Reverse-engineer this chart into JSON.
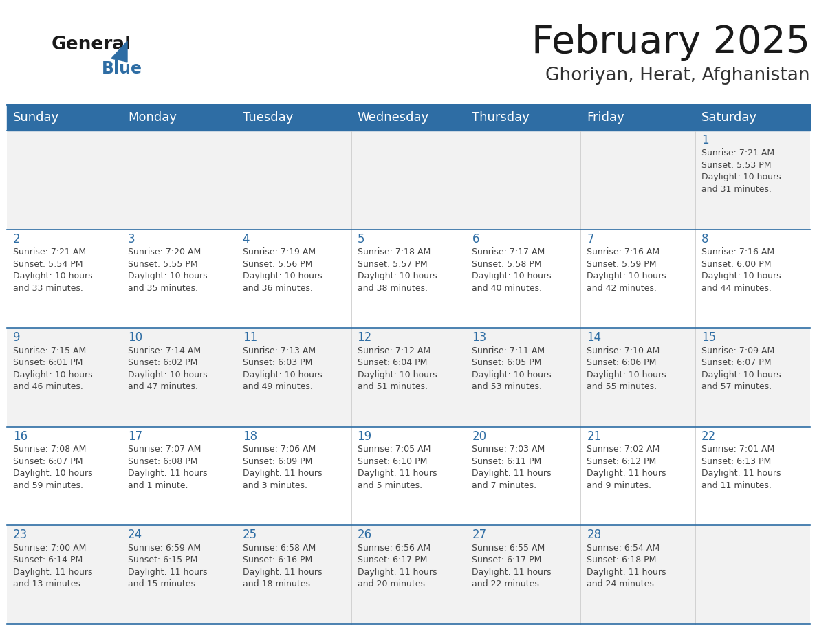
{
  "title": "February 2025",
  "subtitle": "Ghoriyan, Herat, Afghanistan",
  "days_of_week": [
    "Sunday",
    "Monday",
    "Tuesday",
    "Wednesday",
    "Thursday",
    "Friday",
    "Saturday"
  ],
  "header_bg": "#2E6DA4",
  "header_text": "#FFFFFF",
  "cell_bg_odd": "#F2F2F2",
  "cell_bg_even": "#FFFFFF",
  "border_color": "#2E6DA4",
  "day_number_color": "#2E6DA4",
  "text_color": "#444444",
  "logo_text_color": "#1a1a1a",
  "logo_blue_color": "#2E6DA4",
  "title_color": "#1a1a1a",
  "subtitle_color": "#333333",
  "calendar_data": [
    [
      null,
      null,
      null,
      null,
      null,
      null,
      {
        "day": 1,
        "sunrise": "7:21 AM",
        "sunset": "5:53 PM",
        "daylight_line1": "Daylight: 10 hours",
        "daylight_line2": "and 31 minutes."
      }
    ],
    [
      {
        "day": 2,
        "sunrise": "7:21 AM",
        "sunset": "5:54 PM",
        "daylight_line1": "Daylight: 10 hours",
        "daylight_line2": "and 33 minutes."
      },
      {
        "day": 3,
        "sunrise": "7:20 AM",
        "sunset": "5:55 PM",
        "daylight_line1": "Daylight: 10 hours",
        "daylight_line2": "and 35 minutes."
      },
      {
        "day": 4,
        "sunrise": "7:19 AM",
        "sunset": "5:56 PM",
        "daylight_line1": "Daylight: 10 hours",
        "daylight_line2": "and 36 minutes."
      },
      {
        "day": 5,
        "sunrise": "7:18 AM",
        "sunset": "5:57 PM",
        "daylight_line1": "Daylight: 10 hours",
        "daylight_line2": "and 38 minutes."
      },
      {
        "day": 6,
        "sunrise": "7:17 AM",
        "sunset": "5:58 PM",
        "daylight_line1": "Daylight: 10 hours",
        "daylight_line2": "and 40 minutes."
      },
      {
        "day": 7,
        "sunrise": "7:16 AM",
        "sunset": "5:59 PM",
        "daylight_line1": "Daylight: 10 hours",
        "daylight_line2": "and 42 minutes."
      },
      {
        "day": 8,
        "sunrise": "7:16 AM",
        "sunset": "6:00 PM",
        "daylight_line1": "Daylight: 10 hours",
        "daylight_line2": "and 44 minutes."
      }
    ],
    [
      {
        "day": 9,
        "sunrise": "7:15 AM",
        "sunset": "6:01 PM",
        "daylight_line1": "Daylight: 10 hours",
        "daylight_line2": "and 46 minutes."
      },
      {
        "day": 10,
        "sunrise": "7:14 AM",
        "sunset": "6:02 PM",
        "daylight_line1": "Daylight: 10 hours",
        "daylight_line2": "and 47 minutes."
      },
      {
        "day": 11,
        "sunrise": "7:13 AM",
        "sunset": "6:03 PM",
        "daylight_line1": "Daylight: 10 hours",
        "daylight_line2": "and 49 minutes."
      },
      {
        "day": 12,
        "sunrise": "7:12 AM",
        "sunset": "6:04 PM",
        "daylight_line1": "Daylight: 10 hours",
        "daylight_line2": "and 51 minutes."
      },
      {
        "day": 13,
        "sunrise": "7:11 AM",
        "sunset": "6:05 PM",
        "daylight_line1": "Daylight: 10 hours",
        "daylight_line2": "and 53 minutes."
      },
      {
        "day": 14,
        "sunrise": "7:10 AM",
        "sunset": "6:06 PM",
        "daylight_line1": "Daylight: 10 hours",
        "daylight_line2": "and 55 minutes."
      },
      {
        "day": 15,
        "sunrise": "7:09 AM",
        "sunset": "6:07 PM",
        "daylight_line1": "Daylight: 10 hours",
        "daylight_line2": "and 57 minutes."
      }
    ],
    [
      {
        "day": 16,
        "sunrise": "7:08 AM",
        "sunset": "6:07 PM",
        "daylight_line1": "Daylight: 10 hours",
        "daylight_line2": "and 59 minutes."
      },
      {
        "day": 17,
        "sunrise": "7:07 AM",
        "sunset": "6:08 PM",
        "daylight_line1": "Daylight: 11 hours",
        "daylight_line2": "and 1 minute."
      },
      {
        "day": 18,
        "sunrise": "7:06 AM",
        "sunset": "6:09 PM",
        "daylight_line1": "Daylight: 11 hours",
        "daylight_line2": "and 3 minutes."
      },
      {
        "day": 19,
        "sunrise": "7:05 AM",
        "sunset": "6:10 PM",
        "daylight_line1": "Daylight: 11 hours",
        "daylight_line2": "and 5 minutes."
      },
      {
        "day": 20,
        "sunrise": "7:03 AM",
        "sunset": "6:11 PM",
        "daylight_line1": "Daylight: 11 hours",
        "daylight_line2": "and 7 minutes."
      },
      {
        "day": 21,
        "sunrise": "7:02 AM",
        "sunset": "6:12 PM",
        "daylight_line1": "Daylight: 11 hours",
        "daylight_line2": "and 9 minutes."
      },
      {
        "day": 22,
        "sunrise": "7:01 AM",
        "sunset": "6:13 PM",
        "daylight_line1": "Daylight: 11 hours",
        "daylight_line2": "and 11 minutes."
      }
    ],
    [
      {
        "day": 23,
        "sunrise": "7:00 AM",
        "sunset": "6:14 PM",
        "daylight_line1": "Daylight: 11 hours",
        "daylight_line2": "and 13 minutes."
      },
      {
        "day": 24,
        "sunrise": "6:59 AM",
        "sunset": "6:15 PM",
        "daylight_line1": "Daylight: 11 hours",
        "daylight_line2": "and 15 minutes."
      },
      {
        "day": 25,
        "sunrise": "6:58 AM",
        "sunset": "6:16 PM",
        "daylight_line1": "Daylight: 11 hours",
        "daylight_line2": "and 18 minutes."
      },
      {
        "day": 26,
        "sunrise": "6:56 AM",
        "sunset": "6:17 PM",
        "daylight_line1": "Daylight: 11 hours",
        "daylight_line2": "and 20 minutes."
      },
      {
        "day": 27,
        "sunrise": "6:55 AM",
        "sunset": "6:17 PM",
        "daylight_line1": "Daylight: 11 hours",
        "daylight_line2": "and 22 minutes."
      },
      {
        "day": 28,
        "sunrise": "6:54 AM",
        "sunset": "6:18 PM",
        "daylight_line1": "Daylight: 11 hours",
        "daylight_line2": "and 24 minutes."
      },
      null
    ]
  ]
}
